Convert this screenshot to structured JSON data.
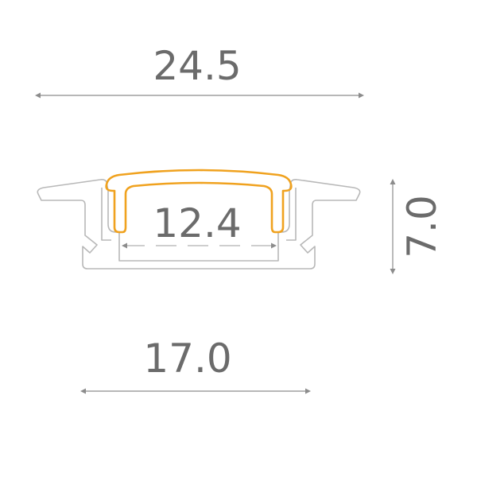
{
  "dimensions": {
    "overall_width": "24.5",
    "inner_width": "12.4",
    "height": "7.0",
    "base_width": "17.0"
  },
  "colors": {
    "dimension_text": "#6b6b6b",
    "dimension_line": "#8c8c8c",
    "profile_outline": "#b8b8b8",
    "diffuser": "#f0a21f"
  }
}
